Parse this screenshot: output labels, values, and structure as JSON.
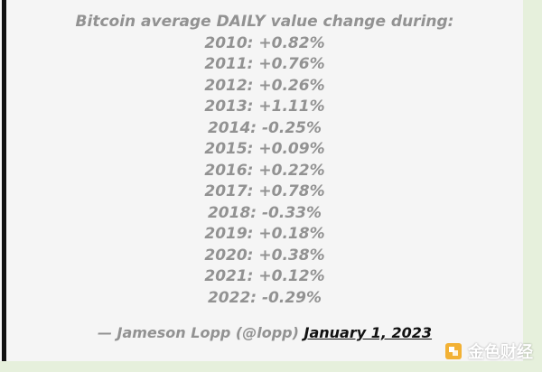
{
  "quote": {
    "header": "Bitcoin average DAILY value change during:",
    "lines": [
      "2010: +0.82%",
      "2011: +0.76%",
      "2012: +0.26%",
      "2013: +1.11%",
      "2014: -0.25%",
      "2015: +0.09%",
      "2016: +0.22%",
      "2017: +0.78%",
      "2018: -0.33%",
      "2019: +0.18%",
      "2020: +0.38%",
      "2021: +0.12%",
      "2022: -0.29%"
    ]
  },
  "attribution": {
    "author": "— Jameson Lopp (@lopp)",
    "date_link": "January 1, 2023"
  },
  "watermark": {
    "text": "金色财经"
  },
  "colors": {
    "page_background": "#e6f0dc",
    "card_background": "#f5f5f5",
    "quote_text": "#929292",
    "border": "#111111",
    "link": "#111111",
    "logo_gold": "#f2b134"
  }
}
